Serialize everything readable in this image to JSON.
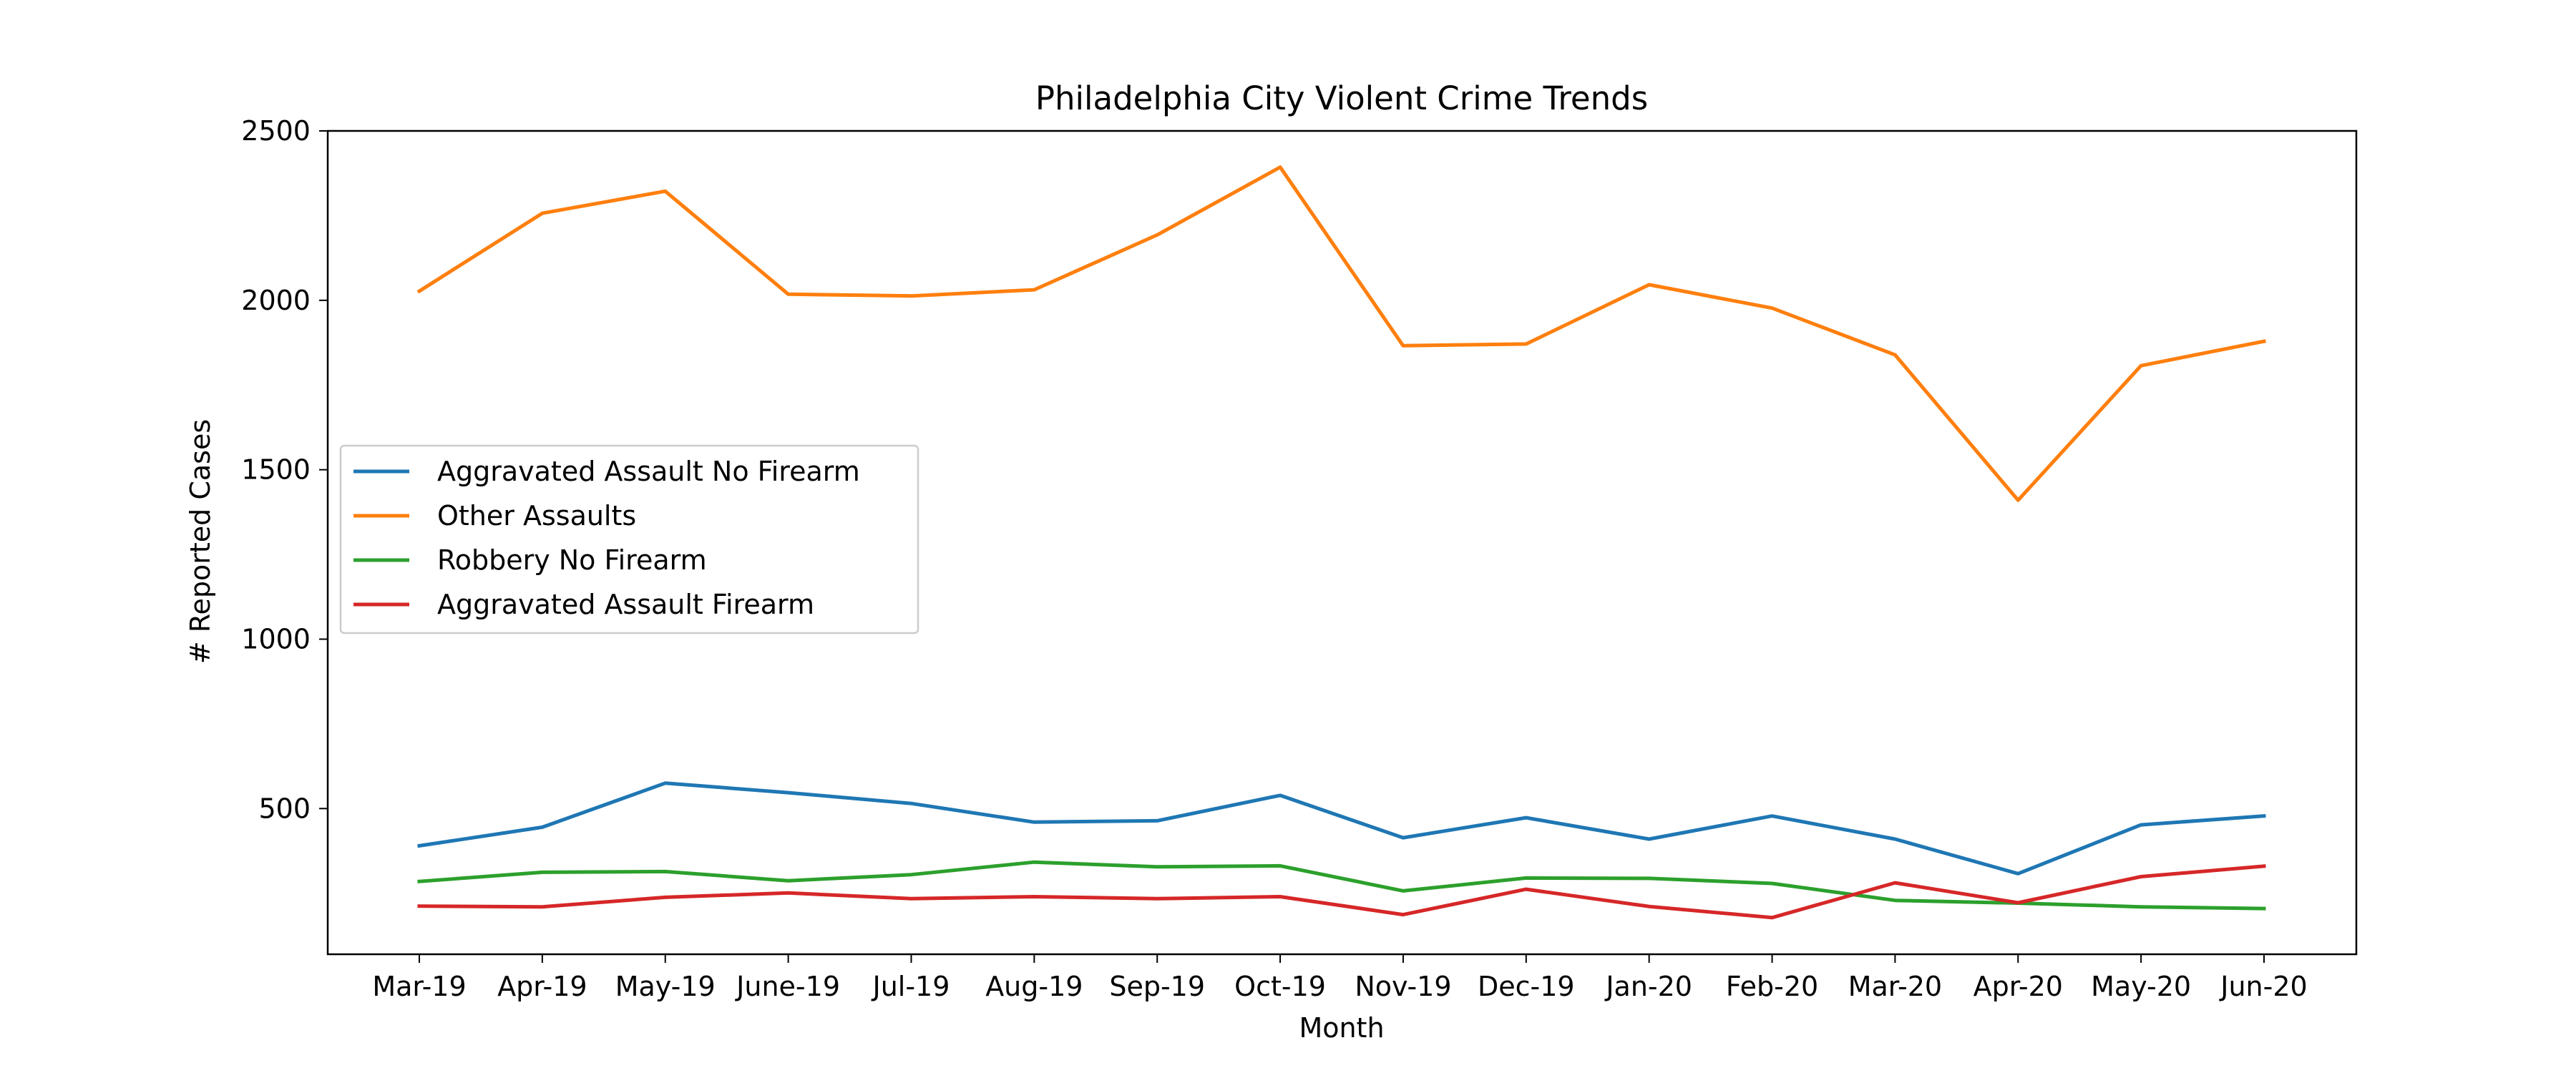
{
  "chart_data": {
    "type": "line",
    "title": "Philadelphia City Violent Crime Trends",
    "xlabel": "Month",
    "ylabel": "# Reported Cases",
    "categories": [
      "Mar-19",
      "Apr-19",
      "May-19",
      "June-19",
      "Jul-19",
      "Aug-19",
      "Sep-19",
      "Oct-19",
      "Nov-19",
      "Dec-19",
      "Jan-20",
      "Feb-20",
      "Mar-20",
      "Apr-20",
      "May-20",
      "Jun-20"
    ],
    "ylim": [
      70,
      2500
    ],
    "yticks": [
      500,
      1000,
      1500,
      2000,
      2500
    ],
    "grid": false,
    "legend_position": "center-left",
    "series": [
      {
        "name": "Aggravated Assault No Firearm",
        "color": "#1f77b4",
        "values": [
          390,
          445,
          575,
          547,
          515,
          460,
          464,
          539,
          414,
          473,
          410,
          478,
          410,
          308,
          452,
          478
        ]
      },
      {
        "name": "Other Assaults",
        "color": "#ff7f0e",
        "values": [
          2027,
          2257,
          2322,
          2018,
          2013,
          2031,
          2193,
          2393,
          1866,
          1871,
          2046,
          1977,
          1839,
          1410,
          1807,
          1879
        ]
      },
      {
        "name": "Robbery No Firearm",
        "color": "#2ca02c",
        "values": [
          285,
          312,
          314,
          287,
          305,
          342,
          328,
          331,
          257,
          295,
          294,
          279,
          229,
          221,
          210,
          205
        ]
      },
      {
        "name": "Aggravated Assault Firearm",
        "color": "#d62728",
        "values": [
          212,
          210,
          238,
          251,
          234,
          240,
          234,
          240,
          187,
          262,
          211,
          178,
          281,
          222,
          299,
          330
        ]
      }
    ]
  }
}
